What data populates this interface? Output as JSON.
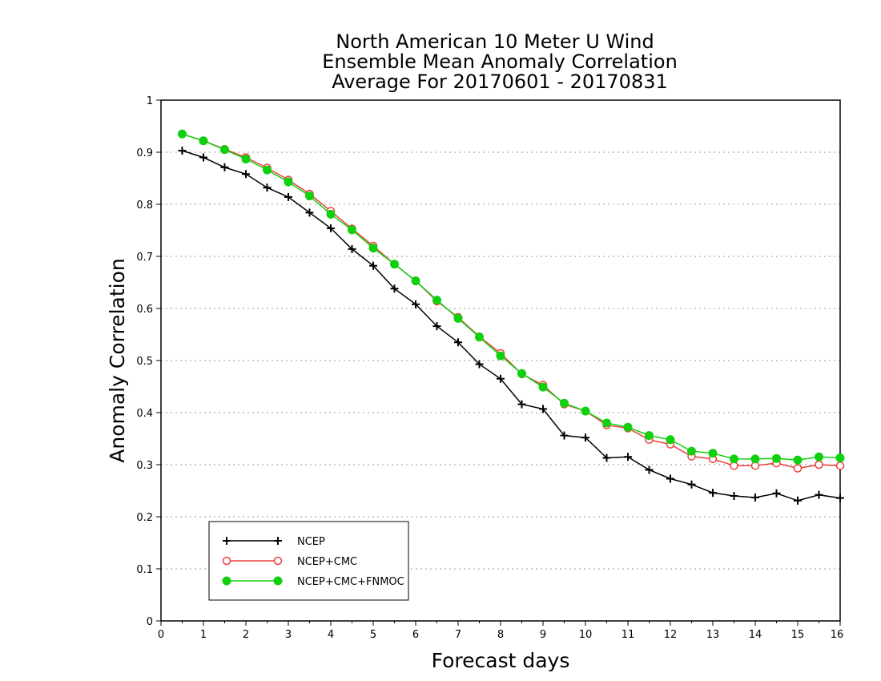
{
  "chart_data": {
    "type": "line",
    "title": [
      "North American 10 Meter U Wind",
      "Ensemble Mean Anomaly Correlation",
      "Average For 20170601 - 20170831"
    ],
    "xlabel": "Forecast days",
    "ylabel": "Anomaly Correlation",
    "xlim": [
      0,
      16
    ],
    "ylim": [
      0,
      1
    ],
    "x_ticks": [
      "0",
      "1",
      "2",
      "3",
      "4",
      "5",
      "6",
      "7",
      "8",
      "9",
      "10",
      "11",
      "12",
      "13",
      "14",
      "15",
      "16"
    ],
    "y_ticks": [
      "0",
      "0.1",
      "0.2",
      "0.3",
      "0.4",
      "0.5",
      "0.6",
      "0.7",
      "0.8",
      "0.9",
      "1"
    ],
    "grid": true,
    "legend_position": "bottom-left",
    "x": [
      0.5,
      1,
      1.5,
      2,
      2.5,
      3,
      3.5,
      4,
      4.5,
      5,
      5.5,
      6,
      6.5,
      7,
      7.5,
      8,
      8.5,
      9,
      9.5,
      10,
      10.5,
      11,
      11.5,
      12,
      12.5,
      13,
      13.5,
      14,
      14.5,
      15,
      15.5,
      16
    ],
    "series": [
      {
        "name": "NCEP",
        "color": "#000000",
        "marker": "plus",
        "values": [
          0.903,
          0.89,
          0.871,
          0.858,
          0.832,
          0.814,
          0.784,
          0.754,
          0.714,
          0.682,
          0.638,
          0.608,
          0.566,
          0.535,
          0.493,
          0.465,
          0.416,
          0.407,
          0.356,
          0.352,
          0.313,
          0.315,
          0.29,
          0.273,
          0.262,
          0.246,
          0.24,
          0.237,
          0.245,
          0.231,
          0.242,
          0.236
        ]
      },
      {
        "name": "NCEP+CMC",
        "color": "#e8403a",
        "marker": "open-circle",
        "values": [
          0.935,
          0.922,
          0.906,
          0.89,
          0.87,
          0.847,
          0.82,
          0.787,
          0.753,
          0.72,
          0.685,
          0.653,
          0.614,
          0.583,
          0.546,
          0.514,
          0.474,
          0.453,
          0.416,
          0.403,
          0.376,
          0.37,
          0.348,
          0.339,
          0.316,
          0.311,
          0.298,
          0.298,
          0.303,
          0.293,
          0.3,
          0.298
        ]
      },
      {
        "name": "NCEP+CMC+FNMOC",
        "color": "#10d010",
        "marker": "filled-circle",
        "values": [
          0.935,
          0.922,
          0.905,
          0.887,
          0.866,
          0.843,
          0.816,
          0.781,
          0.751,
          0.716,
          0.685,
          0.653,
          0.616,
          0.581,
          0.545,
          0.509,
          0.475,
          0.449,
          0.418,
          0.403,
          0.38,
          0.372,
          0.356,
          0.348,
          0.326,
          0.322,
          0.311,
          0.311,
          0.312,
          0.309,
          0.315,
          0.313
        ]
      }
    ]
  }
}
